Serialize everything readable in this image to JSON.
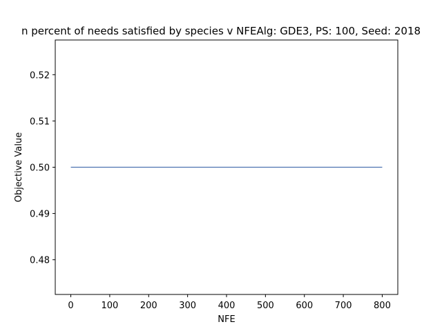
{
  "chart_data": {
    "type": "line",
    "title": "n percent of needs satisfied by species v NFEAlg: GDE3, PS: 100, Seed: 2018",
    "xlabel": "NFE",
    "ylabel": "Objective Value",
    "xlim": [
      -40,
      840
    ],
    "ylim": [
      0.4725,
      0.5275
    ],
    "xticks": [
      0,
      100,
      200,
      300,
      400,
      500,
      600,
      700,
      800
    ],
    "xtick_labels": [
      "0",
      "100",
      "200",
      "300",
      "400",
      "500",
      "600",
      "700",
      "800"
    ],
    "yticks": [
      0.48,
      0.49,
      0.5,
      0.51,
      0.52
    ],
    "ytick_labels": [
      "0.48",
      "0.49",
      "0.50",
      "0.51",
      "0.52"
    ],
    "grid": false,
    "series": [
      {
        "x": [
          0,
          100,
          200,
          300,
          400,
          500,
          600,
          700,
          800
        ],
        "y": [
          0.5,
          0.5,
          0.5,
          0.5,
          0.5,
          0.5,
          0.5,
          0.5,
          0.5
        ],
        "color": "#4c72b0"
      }
    ]
  }
}
